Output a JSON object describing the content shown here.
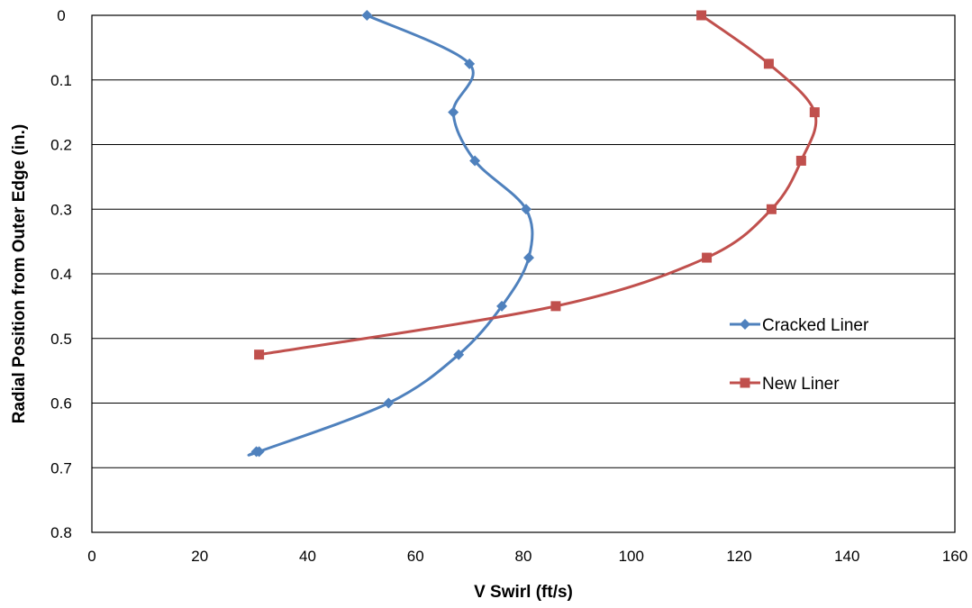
{
  "chart_data": {
    "type": "scatter",
    "xlabel": "V Swirl (ft/s)",
    "ylabel": "Radial Position from Outer Edge (in.)",
    "xlim": [
      0,
      160
    ],
    "ylim": [
      0,
      0.8
    ],
    "y_axis_inverted": true,
    "x_ticks": [
      "0",
      "20",
      "40",
      "60",
      "80",
      "100",
      "120",
      "140",
      "160"
    ],
    "y_ticks": [
      "0",
      "0.1",
      "0.2",
      "0.3",
      "0.4",
      "0.5",
      "0.6",
      "0.7",
      "0.8"
    ],
    "grid": "horizontal",
    "legend_position": "right",
    "smoothed_lines": true,
    "series": [
      {
        "name": "Cracked Liner",
        "color": "#4F81BD",
        "marker": "diamond",
        "x": [
          51,
          70,
          67,
          71,
          80.5,
          81,
          76,
          68,
          55,
          31,
          30.5
        ],
        "y": [
          0,
          0.075,
          0.15,
          0.225,
          0.3,
          0.375,
          0.45,
          0.525,
          0.6,
          0.675,
          0.675
        ]
      },
      {
        "name": "New Liner",
        "color": "#C0504D",
        "marker": "square",
        "x": [
          113,
          125.5,
          134,
          131.5,
          126,
          114,
          86,
          31
        ],
        "y": [
          0,
          0.075,
          0.15,
          0.225,
          0.3,
          0.375,
          0.45,
          0.525
        ]
      }
    ]
  }
}
